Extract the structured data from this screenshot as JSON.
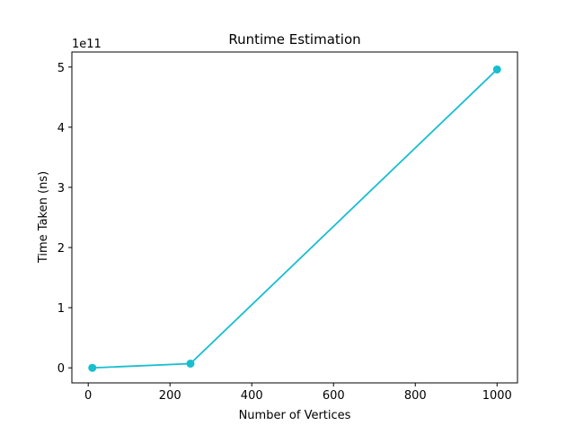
{
  "chart_data": {
    "type": "line",
    "title": "Runtime Estimation",
    "xlabel": "Number of Vertices",
    "ylabel": "Time Taken (ns)",
    "y_offset_label": "1e11",
    "y_scale_factor": 100000000000,
    "xlim": [
      -40,
      1050
    ],
    "ylim": [
      -25000000000,
      525000000000
    ],
    "xticks": [
      0,
      200,
      400,
      600,
      800,
      1000
    ],
    "xtick_labels": [
      "0",
      "200",
      "400",
      "600",
      "800",
      "1000"
    ],
    "yticks": [
      0,
      100000000000,
      200000000000,
      300000000000,
      400000000000,
      500000000000
    ],
    "ytick_labels": [
      "0",
      "1",
      "2",
      "3",
      "4",
      "5"
    ],
    "grid": false,
    "series": [
      {
        "color": "#17becf",
        "marker": "circle",
        "x": [
          10,
          250,
          1000
        ],
        "y": [
          0,
          7000000000,
          496000000000
        ]
      }
    ]
  }
}
